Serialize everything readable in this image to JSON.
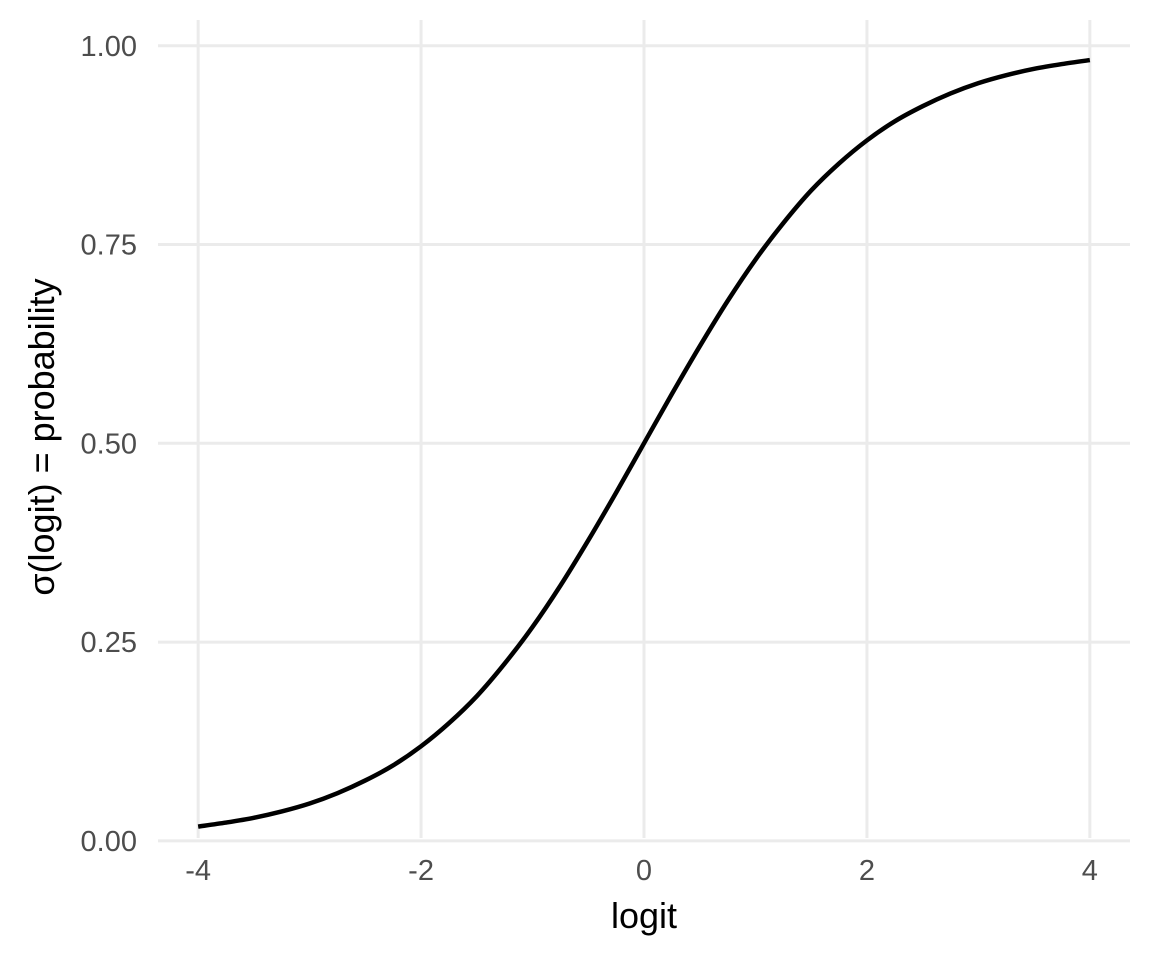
{
  "chart_data": {
    "type": "line",
    "title": "",
    "xlabel": "logit",
    "ylabel": "σ(logit) = probability",
    "xlim": [
      -4.36,
      4.36
    ],
    "ylim": [
      -0.014,
      1.05
    ],
    "x_ticks": [
      {
        "value": -4,
        "label": "-4"
      },
      {
        "value": -2,
        "label": "-2"
      },
      {
        "value": 0,
        "label": "0"
      },
      {
        "value": 2,
        "label": "2"
      },
      {
        "value": 4,
        "label": "4"
      }
    ],
    "y_ticks": [
      {
        "value": 0,
        "label": "0.00"
      },
      {
        "value": 0.25,
        "label": "0.25"
      },
      {
        "value": 0.5,
        "label": "0.50"
      },
      {
        "value": 0.75,
        "label": "0.75"
      },
      {
        "value": 1,
        "label": "1.00"
      }
    ],
    "grid": true,
    "legend": "none",
    "colors": {
      "grid": "#ebebeb",
      "line": "#000000",
      "tick_text": "#4d4d4d",
      "axis_title": "#000000"
    },
    "series": [
      {
        "x": [
          -4,
          -3.75,
          -3.5,
          -3.25,
          -3,
          -2.75,
          -2.5,
          -2.25,
          -2,
          -1.75,
          -1.5,
          -1.25,
          -1,
          -0.75,
          -0.5,
          -0.25,
          0,
          0.25,
          0.5,
          0.75,
          1,
          1.25,
          1.5,
          1.75,
          2,
          2.25,
          2.5,
          2.75,
          3,
          3.25,
          3.5,
          3.75,
          4
        ],
        "values": [
          0.018,
          0.023,
          0.029,
          0.037,
          0.047,
          0.06,
          0.076,
          0.095,
          0.119,
          0.148,
          0.182,
          0.223,
          0.269,
          0.321,
          0.378,
          0.438,
          0.5,
          0.562,
          0.622,
          0.679,
          0.731,
          0.777,
          0.818,
          0.852,
          0.881,
          0.905,
          0.924,
          0.94,
          0.953,
          0.963,
          0.971,
          0.977,
          0.982
        ]
      }
    ]
  }
}
